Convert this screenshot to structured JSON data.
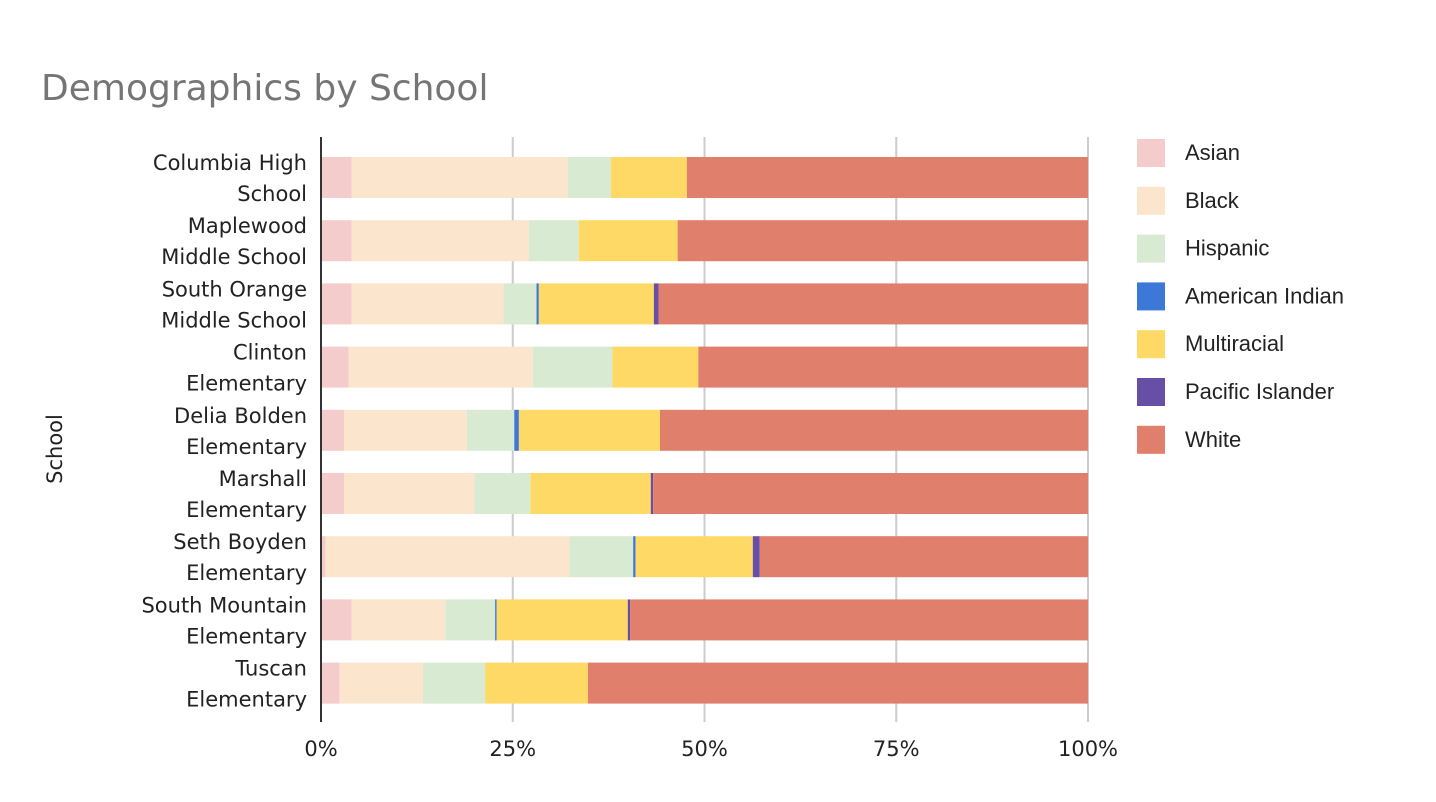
{
  "chart_data": {
    "type": "bar",
    "orientation": "horizontal",
    "stacked": "percent",
    "title": "Demographics by School",
    "ylabel": "School",
    "xlabel": "",
    "xlim": [
      0,
      100
    ],
    "xticks": [
      "0%",
      "25%",
      "50%",
      "75%",
      "100%"
    ],
    "grid": true,
    "legend_position": "right",
    "categories": [
      [
        "Columbia High",
        "School"
      ],
      [
        "Maplewood",
        "Middle School"
      ],
      [
        "South Orange",
        "Middle School"
      ],
      [
        "Clinton",
        "Elementary"
      ],
      [
        "Delia Bolden",
        "Elementary"
      ],
      [
        "Marshall",
        "Elementary"
      ],
      [
        "Seth Boyden",
        "Elementary"
      ],
      [
        "South Mountain",
        "Elementary"
      ],
      [
        "Tuscan",
        "Elementary"
      ]
    ],
    "series": [
      {
        "name": "Asian",
        "color": "#f4cccc",
        "values": [
          4.0,
          4.0,
          4.0,
          3.6,
          3.0,
          3.0,
          0.6,
          4.0,
          2.4
        ]
      },
      {
        "name": "Black",
        "color": "#fce5cd",
        "values": [
          28.2,
          23.1,
          19.8,
          24.0,
          16.0,
          17.0,
          31.8,
          12.2,
          10.9
        ]
      },
      {
        "name": "Hispanic",
        "color": "#d9ead3",
        "values": [
          5.6,
          6.5,
          4.3,
          10.4,
          6.2,
          7.3,
          8.3,
          6.5,
          8.1
        ]
      },
      {
        "name": "American Indian",
        "color": "#3c78d8",
        "values": [
          0.0,
          0.0,
          0.3,
          0.0,
          0.6,
          0.0,
          0.3,
          0.2,
          0.0
        ]
      },
      {
        "name": "Multiracial",
        "color": "#ffd966",
        "values": [
          9.9,
          12.9,
          15.0,
          11.2,
          18.4,
          15.7,
          15.3,
          17.1,
          13.4
        ]
      },
      {
        "name": "Pacific Islander",
        "color": "#674ea7",
        "values": [
          0.0,
          0.0,
          0.6,
          0.0,
          0.0,
          0.3,
          0.9,
          0.3,
          0.0
        ]
      },
      {
        "name": "White",
        "color": "#e07f6b",
        "values": [
          52.3,
          53.5,
          56.0,
          50.8,
          55.8,
          56.7,
          42.8,
          59.7,
          65.2
        ]
      }
    ]
  }
}
